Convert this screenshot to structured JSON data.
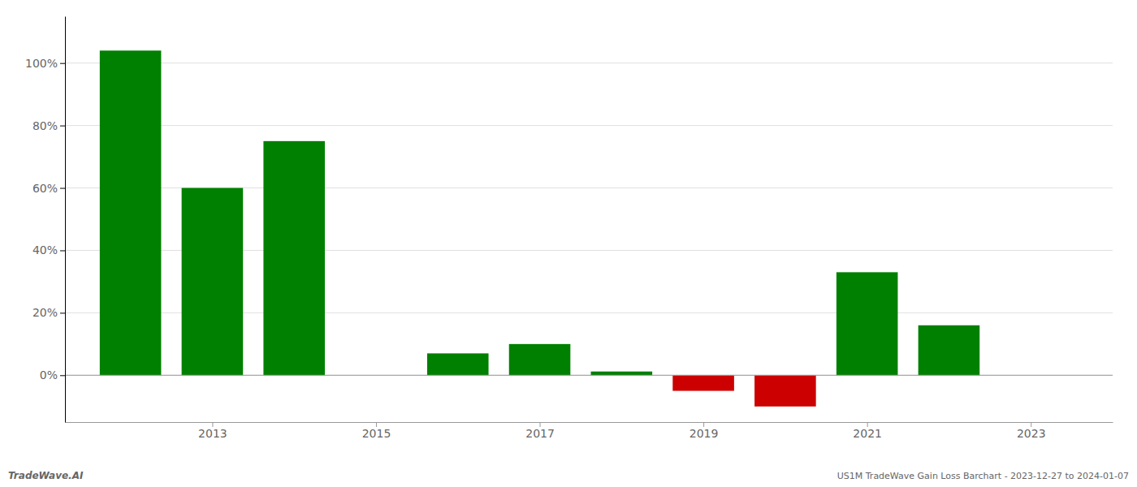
{
  "chart_data": {
    "type": "bar",
    "x": [
      2012,
      2013,
      2014,
      2016,
      2017,
      2018,
      2019,
      2020,
      2021,
      2022
    ],
    "values": [
      1.04,
      0.6,
      0.75,
      0.07,
      0.1,
      0.012,
      -0.05,
      -0.1,
      0.33,
      0.16
    ],
    "colors": [
      "#008000",
      "#008000",
      "#008000",
      "#008000",
      "#008000",
      "#008000",
      "#cc0000",
      "#cc0000",
      "#008000",
      "#008000"
    ],
    "xlim": [
      2011.2,
      2024.0
    ],
    "xticks": [
      2013,
      2015,
      2017,
      2019,
      2021,
      2023
    ],
    "ylim": [
      -0.15,
      1.15
    ],
    "yticks": [
      {
        "value": 0.0,
        "label": "0%"
      },
      {
        "value": 0.2,
        "label": "20%"
      },
      {
        "value": 0.4,
        "label": "40%"
      },
      {
        "value": 0.6,
        "label": "60%"
      },
      {
        "value": 0.8,
        "label": "80%"
      },
      {
        "value": 1.0,
        "label": "100%"
      }
    ],
    "grid": true,
    "annotations": [
      "TradeWave.AI",
      "US1M TradeWave Gain Loss Barchart - 2023-12-27 to 2024-01-07"
    ]
  }
}
